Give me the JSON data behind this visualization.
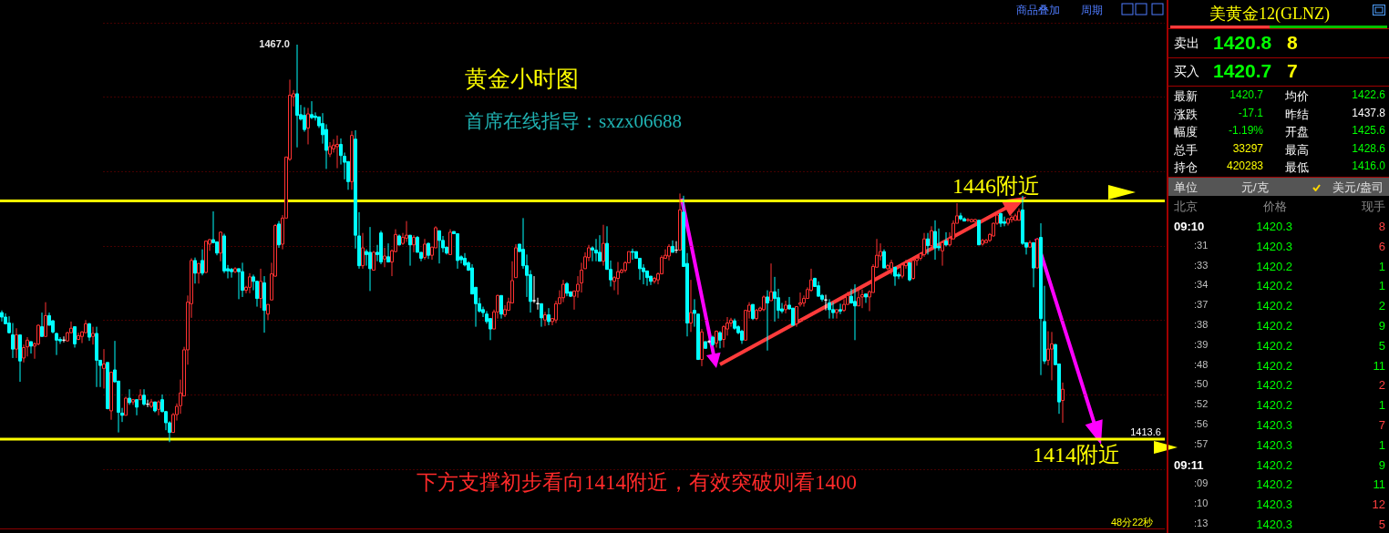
{
  "chart_data": [
    {
      "type": "candlestick",
      "title": "黄金小时图",
      "subtitle": "首席在线指导：sxzx06688",
      "categories": [
        null,
        null,
        null,
        null,
        null,
        null,
        null,
        null,
        null,
        null,
        null,
        null,
        null,
        null,
        null,
        null,
        null,
        null,
        null,
        null,
        null,
        null,
        null,
        null,
        null,
        null,
        null,
        null,
        null,
        null,
        null,
        null,
        null,
        null,
        null,
        null,
        null,
        null,
        null,
        null,
        null,
        null,
        null,
        null,
        null,
        null,
        null,
        null,
        null,
        null,
        null,
        null,
        null,
        null,
        null,
        null,
        null,
        null,
        null,
        null,
        null,
        null,
        null,
        null,
        null,
        null,
        null,
        null,
        null,
        null,
        null,
        null,
        null,
        null,
        null,
        null,
        null,
        null,
        null,
        null,
        null,
        null,
        null,
        null,
        null,
        null,
        null,
        null,
        null,
        null,
        null,
        null,
        null,
        null,
        null,
        null,
        null,
        null,
        null,
        null,
        null,
        null,
        null,
        null,
        null,
        null,
        null,
        null,
        null,
        null,
        null,
        null,
        null,
        null,
        null,
        null,
        null,
        null,
        null,
        null,
        null,
        null,
        null,
        null,
        null,
        null,
        null,
        null,
        null,
        null,
        null,
        null,
        null,
        null,
        null,
        null,
        null,
        null,
        null,
        null,
        null,
        null,
        null,
        null,
        null,
        null,
        null,
        null,
        null,
        null,
        null,
        null,
        null,
        null,
        null,
        null,
        null,
        null,
        null,
        null,
        null,
        null,
        null,
        null,
        null,
        null,
        null,
        null,
        null,
        null,
        null,
        null,
        null,
        null,
        null,
        null,
        null,
        null,
        null,
        null,
        null,
        null,
        null,
        null,
        null,
        null,
        null,
        null,
        null,
        null,
        null,
        null,
        null,
        null,
        null,
        null,
        null,
        null,
        null,
        null,
        null,
        null,
        null,
        null,
        null,
        null,
        null,
        null,
        null,
        null,
        null,
        null,
        null,
        null,
        null,
        null,
        null,
        null,
        null,
        null,
        null,
        null,
        null,
        null,
        null,
        null,
        null,
        null,
        null,
        null,
        null,
        null,
        null,
        null,
        null,
        null,
        null,
        null,
        null,
        null,
        null,
        null,
        null,
        null,
        null,
        null,
        null,
        null,
        null,
        null,
        null,
        null,
        null,
        null,
        null,
        null,
        null,
        null,
        null,
        null,
        null,
        null,
        null,
        null,
        null,
        null,
        null,
        null,
        null,
        null,
        null,
        null,
        null,
        null,
        null,
        null,
        null,
        null,
        null,
        null,
        null,
        null,
        null,
        null,
        null,
        null,
        null,
        null,
        null,
        null,
        null,
        null
      ],
      "ohlc": [
        [
          1431.0,
          1431.3,
          1429.8,
          1430.4
        ],
        [
          1430.4,
          1430.9,
          1429.5,
          1429.5
        ],
        [
          1429.6,
          1430.5,
          1428.2,
          1428.3
        ],
        [
          1428.0,
          1429.6,
          1424.9,
          1426.1
        ],
        [
          1426.1,
          1428.9,
          1424.9,
          1428.0
        ],
        [
          1428.0,
          1428.0,
          1421.7,
          1424.5
        ],
        [
          1424.9,
          1426.7,
          1424.3,
          1426.3
        ],
        [
          1426.4,
          1427.7,
          1425.1,
          1427.3
        ],
        [
          1427.1,
          1427.1,
          1425.5,
          1426.5
        ],
        [
          1426.5,
          1427.0,
          1424.8,
          1426.8
        ],
        [
          1426.8,
          1429.4,
          1426.6,
          1429.3
        ],
        [
          1429.1,
          1431.0,
          1427.8,
          1427.8
        ],
        [
          1427.8,
          1432.4,
          1427.8,
          1430.6
        ],
        [
          1430.6,
          1431.0,
          1429.3,
          1429.3
        ],
        [
          1429.9,
          1430.0,
          1428.2,
          1428.4
        ],
        [
          1428.2,
          1428.3,
          1425.3,
          1427.3
        ],
        [
          1427.4,
          1427.7,
          1426.8,
          1427.2
        ],
        [
          1427.3,
          1427.8,
          1427.0,
          1427.3
        ],
        [
          1427.2,
          1428.4,
          1427.1,
          1428.3
        ],
        [
          1428.3,
          1429.8,
          1428.2,
          1428.9
        ],
        [
          1429.1,
          1429.1,
          1426.3,
          1426.8
        ],
        [
          1427.4,
          1428.3,
          1427.3,
          1427.9
        ],
        [
          1427.8,
          1428.5,
          1426.9,
          1428.4
        ],
        [
          1428.3,
          1430.0,
          1428.3,
          1429.5
        ],
        [
          1429.5,
          1429.6,
          1427.2,
          1427.7
        ],
        [
          1427.8,
          1429.1,
          1426.7,
          1428.2
        ],
        [
          1428.2,
          1429.1,
          1421.0,
          1424.6
        ],
        [
          1424.6,
          1424.6,
          1421.0,
          1423.9
        ],
        [
          1423.5,
          1426.1,
          1420.8,
          1424.1
        ],
        [
          1424.3,
          1424.3,
          1418.0,
          1418.1
        ],
        [
          1417.8,
          1423.0,
          1416.6,
          1423.0
        ],
        [
          1423.3,
          1427.2,
          1421.6,
          1421.7
        ],
        [
          1421.8,
          1421.8,
          1414.9,
          1417.6
        ],
        [
          1417.5,
          1418.2,
          1416.3,
          1417.2
        ],
        [
          1417.2,
          1419.7,
          1417.2,
          1419.5
        ],
        [
          1419.5,
          1420.7,
          1418.6,
          1418.9
        ],
        [
          1419.0,
          1419.4,
          1418.6,
          1419.3
        ],
        [
          1419.3,
          1419.3,
          1417.2,
          1418.3
        ],
        [
          1419.3,
          1420.7,
          1419.3,
          1419.9
        ],
        [
          1419.9,
          1420.7,
          1418.5,
          1418.7
        ],
        [
          1418.7,
          1419.3,
          1418.3,
          1418.7
        ],
        [
          1418.4,
          1419.4,
          1418.2,
          1419.0
        ],
        [
          1419.0,
          1419.0,
          1417.6,
          1417.8
        ],
        [
          1418.0,
          1419.2,
          1417.2,
          1419.0
        ],
        [
          1419.3,
          1420.0,
          1417.6,
          1417.7
        ],
        [
          1417.7,
          1417.8,
          1415.2,
          1416.2
        ],
        [
          1416.2,
          1416.4,
          1413.6,
          1414.9
        ],
        [
          1414.9,
          1417.5,
          1414.9,
          1417.3
        ],
        [
          1417.3,
          1418.8,
          1416.5,
          1418.4
        ],
        [
          1418.5,
          1422.0,
          1417.4,
          1420.2
        ],
        [
          1419.8,
          1426.4,
          1419.8,
          1426.0
        ],
        [
          1426.0,
          1433.3,
          1424.0,
          1432.4
        ],
        [
          1432.2,
          1438.3,
          1430.3,
          1438.0
        ],
        [
          1438.0,
          1438.4,
          1434.9,
          1436.3
        ],
        [
          1436.3,
          1437.6,
          1434.9,
          1437.6
        ],
        [
          1438.0,
          1439.5,
          1436.0,
          1436.3
        ],
        [
          1436.4,
          1440.6,
          1436.3,
          1440.6
        ],
        [
          1440.2,
          1440.9,
          1439.3,
          1440.8
        ],
        [
          1440.8,
          1444.6,
          1440.3,
          1440.4
        ],
        [
          1440.5,
          1440.5,
          1438.7,
          1439.0
        ],
        [
          1439.0,
          1441.9,
          1437.9,
          1441.8
        ],
        [
          1441.3,
          1441.6,
          1436.3,
          1436.6
        ],
        [
          1436.9,
          1437.4,
          1435.6,
          1436.6
        ],
        [
          1436.8,
          1437.0,
          1435.7,
          1436.5
        ],
        [
          1436.5,
          1437.1,
          1436.3,
          1436.9
        ],
        [
          1436.9,
          1436.9,
          1432.8,
          1436.5
        ],
        [
          1436.5,
          1437.7,
          1433.1,
          1434.0
        ],
        [
          1434.0,
          1434.6,
          1433.6,
          1434.4
        ],
        [
          1434.4,
          1436.3,
          1433.6,
          1435.8
        ],
        [
          1435.8,
          1436.1,
          1434.0,
          1435.2
        ],
        [
          1435.2,
          1435.3,
          1431.8,
          1432.9
        ],
        [
          1432.9,
          1436.9,
          1431.6,
          1435.2
        ],
        [
          1435.0,
          1435.9,
          1428.3,
          1431.3
        ],
        [
          1430.8,
          1432.1,
          1430.0,
          1432.1
        ],
        [
          1432.7,
          1437.7,
          1432.7,
          1436.2
        ],
        [
          1435.9,
          1442.9,
          1435.8,
          1442.7
        ],
        [
          1442.9,
          1443.3,
          1439.7,
          1440.1
        ],
        [
          1440.2,
          1444.1,
          1439.5,
          1443.7
        ],
        [
          1443.7,
          1451.9,
          1443.7,
          1451.9
        ],
        [
          1451.6,
          1462.3,
          1451.4,
          1460.2
        ],
        [
          1460.0,
          1460.9,
          1458.7,
          1460.4
        ],
        [
          1460.4,
          1467.0,
          1453.2,
          1457.5
        ],
        [
          1457.6,
          1458.9,
          1456.8,
          1457.0
        ],
        [
          1457.5,
          1458.6,
          1455.3,
          1455.6
        ],
        [
          1455.8,
          1458.5,
          1453.6,
          1457.7
        ],
        [
          1457.6,
          1459.4,
          1457.0,
          1457.2
        ],
        [
          1457.4,
          1457.9,
          1456.8,
          1457.2
        ],
        [
          1457.3,
          1457.3,
          1455.8,
          1456.1
        ],
        [
          1456.4,
          1457.8,
          1453.7,
          1454.9
        ],
        [
          1455.6,
          1456.3,
          1450.3,
          1452.8
        ],
        [
          1452.3,
          1453.9,
          1451.9,
          1453.3
        ],
        [
          1453.0,
          1454.3,
          1452.5,
          1453.5
        ],
        [
          1453.3,
          1454.8,
          1450.4,
          1453.6
        ],
        [
          1453.6,
          1454.4,
          1450.9,
          1452.1
        ],
        [
          1452.0,
          1452.5,
          1448.9,
          1451.2
        ],
        [
          1451.3,
          1451.3,
          1447.5,
          1448.6
        ],
        [
          1448.6,
          1455.4,
          1447.5,
          1454.8
        ],
        [
          1454.3,
          1455.5,
          1439.6,
          1441.4
        ],
        [
          1441.3,
          1444.5,
          1436.9,
          1437.3
        ],
        [
          1437.3,
          1441.7,
          1436.9,
          1439.7
        ],
        [
          1439.2,
          1439.5,
          1437.3,
          1438.8
        ],
        [
          1439.1,
          1442.5,
          1433.9,
          1436.9
        ],
        [
          1436.7,
          1439.3,
          1436.7,
          1439.1
        ],
        [
          1439.1,
          1440.1,
          1437.9,
          1438.8
        ],
        [
          1441.7,
          1442.0,
          1437.5,
          1437.8
        ],
        [
          1438.2,
          1439.7,
          1437.1,
          1438.6
        ],
        [
          1438.5,
          1440.3,
          1437.8,
          1437.8
        ],
        [
          1437.8,
          1439.5,
          1435.9,
          1439.3
        ],
        [
          1439.2,
          1442.2,
          1439.1,
          1441.5
        ],
        [
          1441.3,
          1441.5,
          1440.0,
          1440.1
        ],
        [
          1440.3,
          1441.7,
          1440.1,
          1441.1
        ],
        [
          1441.0,
          1443.3,
          1440.5,
          1441.4
        ],
        [
          1441.4,
          1441.4,
          1437.3,
          1440.1
        ],
        [
          1440.1,
          1441.4,
          1439.1,
          1441.1
        ],
        [
          1441.1,
          1441.3,
          1439.1,
          1439.1
        ],
        [
          1439.1,
          1439.1,
          1437.9,
          1438.3
        ],
        [
          1438.4,
          1440.9,
          1438.1,
          1440.2
        ],
        [
          1440.3,
          1440.4,
          1438.2,
          1438.7
        ],
        [
          1438.7,
          1439.8,
          1438.1,
          1439.8
        ],
        [
          1439.7,
          1442.6,
          1439.7,
          1442.4
        ],
        [
          1442.0,
          1442.0,
          1437.6,
          1440.7
        ],
        [
          1440.7,
          1441.3,
          1439.1,
          1439.7
        ],
        [
          1439.8,
          1439.8,
          1438.8,
          1439.0
        ],
        [
          1438.8,
          1442.2,
          1438.8,
          1441.8
        ],
        [
          1441.9,
          1441.9,
          1441.6,
          1441.6
        ],
        [
          1441.6,
          1441.6,
          1436.9,
          1438.0
        ],
        [
          1438.5,
          1438.7,
          1437.6,
          1438.1
        ],
        [
          1438.3,
          1439.0,
          1437.2,
          1437.4
        ],
        [
          1437.7,
          1437.9,
          1436.6,
          1436.7
        ],
        [
          1437.0,
          1437.5,
          1433.5,
          1433.5
        ],
        [
          1434.4,
          1434.4,
          1429.1,
          1432.2
        ],
        [
          1432.2,
          1433.0,
          1431.0,
          1431.2
        ],
        [
          1431.4,
          1431.8,
          1430.4,
          1431.0
        ],
        [
          1430.8,
          1431.2,
          1429.5,
          1429.8
        ],
        [
          1430.2,
          1430.2,
          1427.3,
          1428.8
        ],
        [
          1428.8,
          1431.4,
          1428.8,
          1431.1
        ],
        [
          1431.1,
          1433.4,
          1430.2,
          1433.3
        ],
        [
          1433.3,
          1433.3,
          1430.2,
          1430.8
        ],
        [
          1430.7,
          1432.0,
          1430.4,
          1431.4
        ],
        [
          1431.3,
          1433.0,
          1431.3,
          1432.4
        ],
        [
          1432.3,
          1437.9,
          1432.3,
          1435.3
        ],
        [
          1435.7,
          1440.2,
          1435.7,
          1439.7
        ],
        [
          1440.2,
          1440.2,
          1439.2,
          1439.2
        ],
        [
          1439.5,
          1443.7,
          1436.9,
          1437.3
        ],
        [
          1437.3,
          1438.8,
          1433.1,
          1436.0
        ],
        [
          1436.1,
          1436.7,
          1431.0,
          1432.5
        ],
        [
          1432.6,
          1435.9,
          1432.3,
          1432.6
        ],
        [
          1432.2,
          1433.0,
          1431.4,
          1432.2
        ],
        [
          1432.2,
          1432.2,
          1429.1,
          1430.3
        ],
        [
          1430.0,
          1431.1,
          1429.2,
          1430.7
        ],
        [
          1430.7,
          1431.6,
          1429.3,
          1429.8
        ],
        [
          1429.8,
          1430.2,
          1429.3,
          1430.2
        ],
        [
          1430.0,
          1432.6,
          1429.6,
          1432.2
        ],
        [
          1432.2,
          1434.0,
          1432.2,
          1433.0
        ],
        [
          1433.0,
          1435.4,
          1432.4,
          1434.8
        ],
        [
          1434.9,
          1435.1,
          1433.2,
          1433.6
        ],
        [
          1433.8,
          1433.8,
          1433.1,
          1433.2
        ],
        [
          1433.2,
          1433.9,
          1431.4,
          1433.9
        ],
        [
          1433.9,
          1435.9,
          1433.0,
          1434.8
        ],
        [
          1435.0,
          1437.7,
          1433.7,
          1436.7
        ],
        [
          1436.9,
          1439.1,
          1436.9,
          1438.5
        ],
        [
          1438.4,
          1440.1,
          1437.9,
          1439.7
        ],
        [
          1439.7,
          1439.9,
          1437.9,
          1439.4
        ],
        [
          1439.4,
          1440.9,
          1437.9,
          1439.0
        ],
        [
          1439.1,
          1441.4,
          1437.9,
          1437.9
        ],
        [
          1437.9,
          1442.8,
          1437.3,
          1440.3
        ],
        [
          1440.3,
          1442.6,
          1436.8,
          1436.8
        ],
        [
          1436.8,
          1438.0,
          1434.5,
          1435.4
        ],
        [
          1435.2,
          1435.9,
          1434.0,
          1435.7
        ],
        [
          1435.6,
          1437.8,
          1433.4,
          1436.5
        ],
        [
          1436.4,
          1436.9,
          1436.3,
          1436.7
        ],
        [
          1436.7,
          1437.9,
          1436.4,
          1437.7
        ],
        [
          1437.7,
          1439.2,
          1437.7,
          1439.2
        ],
        [
          1439.2,
          1439.6,
          1438.1,
          1439.1
        ],
        [
          1439.2,
          1439.2,
          1438.3,
          1438.3
        ],
        [
          1438.3,
          1438.3,
          1435.4,
          1436.9
        ],
        [
          1437.0,
          1437.5,
          1434.8,
          1436.5
        ],
        [
          1436.6,
          1436.6,
          1434.6,
          1435.7
        ],
        [
          1435.9,
          1435.9,
          1434.7,
          1435.2
        ],
        [
          1435.2,
          1435.8,
          1434.9,
          1435.6
        ],
        [
          1435.4,
          1436.4,
          1434.8,
          1436.2
        ],
        [
          1436.2,
          1438.7,
          1436.2,
          1438.4
        ],
        [
          1438.3,
          1439.5,
          1438.3,
          1438.7
        ],
        [
          1438.6,
          1440.2,
          1438.0,
          1439.9
        ],
        [
          1439.9,
          1440.7,
          1439.1,
          1439.1
        ],
        [
          1439.4,
          1440.6,
          1439.0,
          1439.4
        ],
        [
          1439.4,
          1447.0,
          1439.4,
          1444.8
        ],
        [
          1444.5,
          1446.7,
          1437.2,
          1437.2
        ],
        [
          1437.6,
          1439.0,
          1427.8,
          1429.6
        ],
        [
          1429.6,
          1435.4,
          1428.4,
          1431.0
        ],
        [
          1431.3,
          1432.8,
          1429.1,
          1430.9
        ],
        [
          1430.8,
          1430.8,
          1424.7,
          1424.7
        ],
        [
          1424.7,
          1428.8,
          1423.8,
          1428.4
        ],
        [
          1427.1,
          1427.1,
          1426.2,
          1426.2
        ],
        [
          1427.1,
          1427.3,
          1426.9,
          1427.1
        ],
        [
          1427.7,
          1427.9,
          1426.5,
          1426.7
        ],
        [
          1426.9,
          1428.6,
          1426.3,
          1428.5
        ],
        [
          1428.3,
          1428.5,
          1426.2,
          1427.3
        ],
        [
          1427.4,
          1429.3,
          1426.3,
          1429.1
        ],
        [
          1428.8,
          1430.4,
          1427.9,
          1429.6
        ],
        [
          1429.6,
          1430.3,
          1429.1,
          1430.0
        ],
        [
          1429.9,
          1430.2,
          1428.7,
          1428.9
        ],
        [
          1429.1,
          1429.3,
          1428.1,
          1428.3
        ],
        [
          1428.5,
          1428.7,
          1426.8,
          1427.3
        ],
        [
          1427.3,
          1431.3,
          1427.3,
          1431.3
        ],
        [
          1431.2,
          1432.4,
          1430.2,
          1432.0
        ],
        [
          1432.1,
          1432.1,
          1430.0,
          1430.2
        ],
        [
          1430.2,
          1431.5,
          1430.0,
          1431.3
        ],
        [
          1431.3,
          1431.8,
          1431.1,
          1431.6
        ],
        [
          1431.4,
          1433.3,
          1431.2,
          1433.1
        ],
        [
          1433.1,
          1434.0,
          1425.9,
          1432.3
        ],
        [
          1432.6,
          1437.6,
          1432.6,
          1433.8
        ],
        [
          1433.8,
          1435.8,
          1429.8,
          1432.9
        ],
        [
          1433.0,
          1434.2,
          1430.2,
          1431.3
        ],
        [
          1431.5,
          1432.3,
          1430.9,
          1431.2
        ],
        [
          1431.4,
          1432.6,
          1430.9,
          1432.0
        ],
        [
          1432.0,
          1433.1,
          1431.4,
          1431.5
        ],
        [
          1431.6,
          1431.6,
          1429.3,
          1429.3
        ],
        [
          1429.5,
          1431.8,
          1429.1,
          1431.8
        ],
        [
          1432.1,
          1433.7,
          1431.8,
          1432.3
        ],
        [
          1432.3,
          1433.3,
          1431.8,
          1432.9
        ],
        [
          1432.9,
          1434.4,
          1432.9,
          1434.1
        ],
        [
          1434.0,
          1436.9,
          1433.8,
          1435.4
        ],
        [
          1435.6,
          1435.7,
          1434.5,
          1434.5
        ],
        [
          1434.6,
          1435.2,
          1433.2,
          1433.2
        ],
        [
          1433.3,
          1433.5,
          1432.5,
          1432.8
        ],
        [
          1432.7,
          1433.4,
          1431.3,
          1432.7
        ],
        [
          1432.3,
          1432.8,
          1430.2,
          1431.4
        ],
        [
          1431.4,
          1432.4,
          1430.2,
          1431.0
        ],
        [
          1431.0,
          1431.4,
          1430.2,
          1431.4
        ],
        [
          1431.4,
          1432.2,
          1430.8,
          1431.2
        ],
        [
          1431.3,
          1432.8,
          1431.1,
          1432.1
        ],
        [
          1432.1,
          1433.8,
          1432.1,
          1433.3
        ],
        [
          1433.2,
          1434.2,
          1432.2,
          1432.3
        ],
        [
          1432.5,
          1434.8,
          1427.3,
          1431.9
        ],
        [
          1431.9,
          1434.4,
          1431.9,
          1433.0
        ],
        [
          1433.1,
          1434.1,
          1431.6,
          1433.4
        ],
        [
          1433.5,
          1433.5,
          1432.3,
          1433.1
        ],
        [
          1433.1,
          1434.0,
          1431.2,
          1433.8
        ],
        [
          1433.7,
          1437.5,
          1433.7,
          1437.2
        ],
        [
          1437.1,
          1440.9,
          1437.1,
          1438.7
        ],
        [
          1438.6,
          1440.3,
          1438.0,
          1439.2
        ],
        [
          1439.2,
          1439.5,
          1437.0,
          1437.0
        ],
        [
          1436.9,
          1437.5,
          1436.7,
          1437.3
        ],
        [
          1436.9,
          1438.1,
          1436.1,
          1437.7
        ],
        [
          1437.1,
          1437.1,
          1434.6,
          1435.9
        ],
        [
          1436.1,
          1436.4,
          1435.5,
          1435.9
        ],
        [
          1435.9,
          1437.7,
          1435.6,
          1437.4
        ],
        [
          1437.3,
          1438.1,
          1436.9,
          1437.7
        ],
        [
          1437.7,
          1437.7,
          1435.2,
          1435.4
        ],
        [
          1435.6,
          1438.1,
          1435.4,
          1438.0
        ],
        [
          1438.0,
          1438.6,
          1437.3,
          1438.3
        ],
        [
          1438.3,
          1439.1,
          1438.0,
          1438.9
        ],
        [
          1438.8,
          1441.7,
          1438.5,
          1440.9
        ],
        [
          1440.9,
          1441.7,
          1438.8,
          1440.0
        ],
        [
          1440.0,
          1442.6,
          1439.4,
          1442.0
        ],
        [
          1441.9,
          1443.4,
          1438.1,
          1439.7
        ],
        [
          1439.9,
          1442.3,
          1439.3,
          1439.7
        ],
        [
          1439.3,
          1440.4,
          1437.3,
          1440.4
        ],
        [
          1440.6,
          1441.8,
          1439.9,
          1440.1
        ],
        [
          1440.1,
          1441.8,
          1439.9,
          1441.0
        ],
        [
          1440.9,
          1443.4,
          1440.9,
          1443.0
        ],
        [
          1443.0,
          1445.7,
          1443.0,
          1444.0
        ],
        [
          1444.0,
          1444.4,
          1443.4,
          1443.6
        ],
        [
          1443.6,
          1443.8,
          1443.3,
          1443.3
        ],
        [
          1443.4,
          1443.7,
          1443.2,
          1443.5
        ],
        [
          1443.2,
          1443.6,
          1443.2,
          1443.5
        ],
        [
          1443.2,
          1443.6,
          1443.1,
          1443.5
        ],
        [
          1443.4,
          1443.4,
          1440.1,
          1440.1
        ],
        [
          1440.2,
          1440.9,
          1440.0,
          1440.7
        ],
        [
          1440.4,
          1440.9,
          1440.4,
          1440.7
        ],
        [
          1440.7,
          1441.7,
          1440.5,
          1441.5
        ],
        [
          1441.3,
          1443.1,
          1441.2,
          1443.0
        ],
        [
          1443.0,
          1444.5,
          1442.8,
          1444.1
        ],
        [
          1444.3,
          1444.4,
          1442.5,
          1443.0
        ],
        [
          1443.2,
          1443.9,
          1442.6,
          1443.0
        ],
        [
          1443.0,
          1443.7,
          1442.7,
          1443.6
        ],
        [
          1443.5,
          1444.1,
          1443.1,
          1443.8
        ],
        [
          1443.4,
          1444.3,
          1443.4,
          1444.0
        ],
        [
          1443.4,
          1445.0,
          1443.4,
          1444.6
        ],
        [
          1444.8,
          1446.7,
          1440.1,
          1440.3
        ],
        [
          1440.4,
          1440.4,
          1438.8,
          1439.8
        ],
        [
          1439.8,
          1440.7,
          1439.8,
          1440.4
        ],
        [
          1440.4,
          1440.4,
          1434.4,
          1437.0
        ],
        [
          1437.0,
          1441.0,
          1437.0,
          1440.9
        ],
        [
          1441.1,
          1443.0,
          1422.6,
          1430.2
        ],
        [
          1429.8,
          1434.6,
          1424.1,
          1424.5
        ],
        [
          1424.6,
          1428.5,
          1423.9,
          1426.1
        ],
        [
          1426.1,
          1428.4,
          1421.9,
          1426.8
        ],
        [
          1426.7,
          1426.8,
          1424.0,
          1424.0
        ],
        [
          1424.1,
          1424.1,
          1417.4,
          1419.0
        ],
        [
          1419.2,
          1421.6,
          1416.2,
          1420.7
        ]
      ],
      "ylim": [
        1402,
        1473
      ],
      "yticks": [
        {
          "value": 1410,
          "label": null
        },
        {
          "value": 1420,
          "label": null
        },
        {
          "value": 1430,
          "label": null
        },
        {
          "value": 1440,
          "label": null
        },
        {
          "value": 1450,
          "label": null
        },
        {
          "value": 1460,
          "label": null
        },
        {
          "value": 1470,
          "label": null
        }
      ],
      "grid": "y",
      "ref_lines": [
        {
          "axis": "y",
          "value": 1446,
          "label": "1446附近",
          "color": "#ffff00"
        },
        {
          "axis": "y",
          "value": 1414,
          "label": "1414附近",
          "color": "#ffff00"
        }
      ],
      "annotations": [
        "1467.0",
        "1413.6",
        "下方支撑初步看向1414附近，有效突破则看1400",
        "商品叠加",
        "周期",
        "48分22秒"
      ]
    },
    {
      "type": "other",
      "title": "美黄金12(GLNZ)",
      "annotations": [
        "卖出",
        "1420.8",
        "8",
        "买入",
        "1420.7",
        "7",
        "最新",
        "1420.7",
        "均价",
        "1422.6",
        "涨跌",
        "-17.1",
        "昨结",
        "1437.8",
        "幅度",
        "-1.19%",
        "开盘",
        "1425.6",
        "总手",
        "33297",
        "最高",
        "1428.6",
        "持仓",
        "420283",
        "最低",
        "1416.0",
        "单位",
        "元/克",
        "美元/盎司",
        "北京",
        "价格",
        "现手",
        "09:10",
        "1420.3",
        "8",
        ":31",
        "1420.3",
        "6",
        ":33",
        "1420.2",
        "1",
        ":34",
        "1420.2",
        "1",
        ":37",
        "1420.2",
        "2",
        ":38",
        "1420.2",
        "9",
        ":39",
        "1420.2",
        "5",
        ":48",
        "1420.2",
        "11",
        ":50",
        "1420.2",
        "2",
        ":52",
        "1420.2",
        "1",
        ":56",
        "1420.3",
        "7",
        ":57",
        "1420.3",
        "1",
        "09:11",
        "1420.2",
        "9",
        ":09",
        "1420.2",
        "11",
        ":10",
        "1420.3",
        "12",
        ":13",
        "1420.3",
        "5"
      ],
      "colors": [
        "#ff4040",
        "#ff4040",
        "#00ff00",
        "#00ff00",
        "#00ff00",
        "#00ff00",
        "#00ff00",
        "#00ff00",
        "#ff4040",
        "#00ff00",
        "#ff4040",
        "#00ff00",
        "#00ff00",
        "#00ff00",
        "#ff4040",
        "#ff4040"
      ]
    }
  ]
}
